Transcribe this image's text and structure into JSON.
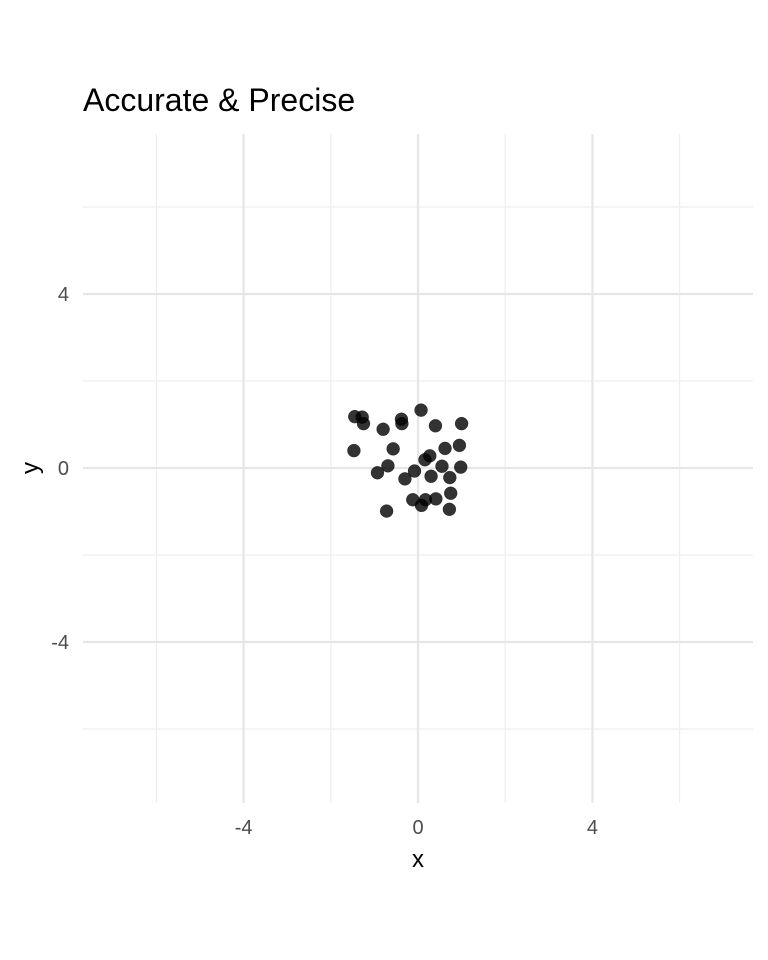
{
  "chart_data": {
    "type": "scatter",
    "title": "Accurate & Precise",
    "xlabel": "x",
    "ylabel": "y",
    "xlim": [
      -7.5,
      7.5
    ],
    "ylim": [
      -7.5,
      7.5
    ],
    "x_ticks": [
      -4,
      0,
      4
    ],
    "y_ticks": [
      -4,
      0,
      4
    ],
    "x_tick_labels": [
      "-4",
      "0",
      "4"
    ],
    "y_tick_labels": [
      "-4",
      "0",
      "4"
    ],
    "grid": true,
    "point_color": "#000000",
    "points": [
      {
        "x": -1.45,
        "y": 1.18
      },
      {
        "x": -1.28,
        "y": 1.17
      },
      {
        "x": -1.25,
        "y": 1.02
      },
      {
        "x": -0.38,
        "y": 1.12
      },
      {
        "x": -0.37,
        "y": 1.02
      },
      {
        "x": 0.07,
        "y": 1.33
      },
      {
        "x": 0.4,
        "y": 0.97
      },
      {
        "x": 1.0,
        "y": 1.02
      },
      {
        "x": -0.8,
        "y": 0.89
      },
      {
        "x": -0.57,
        "y": 0.44
      },
      {
        "x": -1.47,
        "y": 0.4
      },
      {
        "x": 0.95,
        "y": 0.52
      },
      {
        "x": 0.62,
        "y": 0.45
      },
      {
        "x": 0.27,
        "y": 0.28
      },
      {
        "x": 0.16,
        "y": 0.19
      },
      {
        "x": -0.69,
        "y": 0.05
      },
      {
        "x": 0.55,
        "y": 0.04
      },
      {
        "x": 0.98,
        "y": 0.02
      },
      {
        "x": -0.93,
        "y": -0.11
      },
      {
        "x": -0.08,
        "y": -0.07
      },
      {
        "x": 0.3,
        "y": -0.19
      },
      {
        "x": 0.73,
        "y": -0.22
      },
      {
        "x": -0.3,
        "y": -0.25
      },
      {
        "x": 0.75,
        "y": -0.58
      },
      {
        "x": -0.12,
        "y": -0.73
      },
      {
        "x": 0.17,
        "y": -0.73
      },
      {
        "x": 0.41,
        "y": -0.71
      },
      {
        "x": 0.08,
        "y": -0.86
      },
      {
        "x": 0.72,
        "y": -0.95
      },
      {
        "x": -0.72,
        "y": -0.99
      }
    ]
  }
}
